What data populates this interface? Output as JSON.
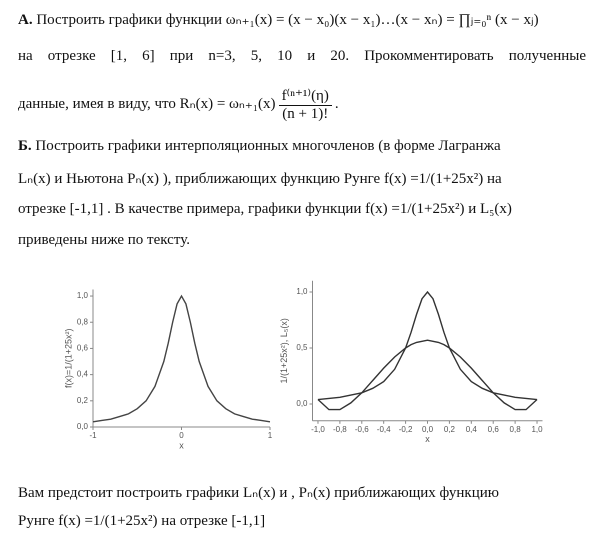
{
  "text": {
    "a_label": "А.",
    "line1": "Построить графики функции ωₙ₊₁(x) = (x − x₀)(x − x₁)…(x − xₙ) = ∏ⱼ₌₀ⁿ (x − xⱼ)",
    "line2": "на отрезке [1, 6] при n=3, 5, 10 и 20. Прокомментировать полученные",
    "line3_lead": "данные, имея в виду, что Rₙ(x) = ωₙ₊₁(x)",
    "line3_num": "f⁽ⁿ⁺¹⁾(η)",
    "line3_den": "(n + 1)!",
    "line3_end": ".",
    "b_label": "Б.",
    "line4": "Построить графики интерполяционных многочленов (в форме Лагранжа",
    "line5": "Lₙ(x)  и Ньютона Pₙ(x) ), приближающих функцию Рунге f(x) =1/(1+25x²) на",
    "line6": "отрезке [-1,1] . В качестве примера, графики функции f(x) =1/(1+25x²)  и  L₅(x)",
    "line7": "приведены ниже по тексту.",
    "line8": "Вам предстоит построить графики Lₙ(x)  и , Pₙ(x)  приближающих функцию",
    "line9": "Рунге f(x) =1/(1+25x²) на отрезке [-1,1]"
  },
  "chart_data": [
    {
      "type": "line",
      "xlabel": "x",
      "ylabel": "f(x)=1/(1+25x²)",
      "x": [
        -1,
        -0.9,
        -0.8,
        -0.7,
        -0.6,
        -0.5,
        -0.4,
        -0.3,
        -0.2,
        -0.15,
        -0.1,
        -0.05,
        0,
        0.05,
        0.1,
        0.15,
        0.2,
        0.3,
        0.4,
        0.5,
        0.6,
        0.7,
        0.8,
        0.9,
        1
      ],
      "series": [
        {
          "color": "#444444",
          "values": [
            0.04,
            0.05,
            0.06,
            0.08,
            0.1,
            0.14,
            0.2,
            0.31,
            0.5,
            0.64,
            0.8,
            0.94,
            1,
            0.94,
            0.8,
            0.64,
            0.5,
            0.31,
            0.2,
            0.14,
            0.1,
            0.08,
            0.06,
            0.05,
            0.04
          ]
        }
      ],
      "xlim": [
        -1,
        1
      ],
      "ylim": [
        0,
        1.05
      ],
      "xticks": [
        -1,
        0,
        1
      ],
      "yticks": [
        {
          "value": 0,
          "label": "0,0"
        },
        {
          "value": 0.2,
          "label": "0,2"
        },
        {
          "value": 0.4,
          "label": "0,4"
        },
        {
          "value": 0.6,
          "label": "0,6"
        },
        {
          "value": 0.8,
          "label": "0,8"
        },
        {
          "value": 1,
          "label": "1,0"
        }
      ]
    },
    {
      "type": "line",
      "xlabel": "x",
      "ylabel": "1/(1+25x²),  L₅(x)",
      "x": [
        -1,
        -0.9,
        -0.8,
        -0.7,
        -0.6,
        -0.5,
        -0.4,
        -0.3,
        -0.2,
        -0.15,
        -0.1,
        -0.05,
        0,
        0.05,
        0.1,
        0.15,
        0.2,
        0.3,
        0.4,
        0.5,
        0.6,
        0.7,
        0.8,
        0.9,
        1
      ],
      "series": [
        {
          "color": "#333333",
          "values": [
            0.04,
            0.05,
            0.06,
            0.08,
            0.1,
            0.14,
            0.2,
            0.31,
            0.5,
            0.64,
            0.8,
            0.94,
            1,
            0.94,
            0.8,
            0.64,
            0.5,
            0.31,
            0.2,
            0.14,
            0.1,
            0.08,
            0.06,
            0.05,
            0.04
          ]
        },
        {
          "color": "#333333",
          "values": [
            0.04,
            -0.05,
            -0.05,
            0.01,
            0.1,
            0.21,
            0.32,
            0.42,
            0.5,
            0.53,
            0.55,
            0.56,
            0.57,
            0.56,
            0.55,
            0.53,
            0.5,
            0.42,
            0.32,
            0.21,
            0.1,
            0.01,
            -0.05,
            -0.05,
            0.04
          ]
        }
      ],
      "xlim": [
        -1.05,
        1.05
      ],
      "ylim": [
        -0.15,
        1.1
      ],
      "xticks": [
        {
          "value": -1,
          "label": "-1,0"
        },
        {
          "value": -0.8,
          "label": "-0,8"
        },
        {
          "value": -0.6,
          "label": "-0,6"
        },
        {
          "value": -0.4,
          "label": "-0,4"
        },
        {
          "value": -0.2,
          "label": "-0,2"
        },
        {
          "value": 0,
          "label": "0,0"
        },
        {
          "value": 0.2,
          "label": "0,2"
        },
        {
          "value": 0.4,
          "label": "0,4"
        },
        {
          "value": 0.6,
          "label": "0,6"
        },
        {
          "value": 0.8,
          "label": "0,8"
        },
        {
          "value": 1,
          "label": "1,0"
        }
      ],
      "yticks": [
        {
          "value": 0,
          "label": "0,0"
        },
        {
          "value": 0.5,
          "label": "0,5"
        },
        {
          "value": 1,
          "label": "1,0"
        }
      ]
    }
  ]
}
